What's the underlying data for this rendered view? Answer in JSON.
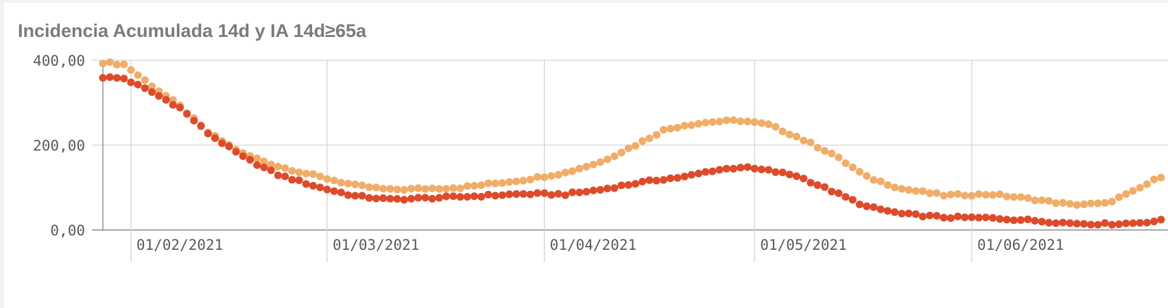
{
  "title": "Incidencia Acumulada 14d y IA 14d≥65a",
  "chart_data": {
    "type": "scatter",
    "title": "Incidencia Acumulada 14d y IA 14d≥65a",
    "xlabel": "",
    "ylabel": "",
    "x_start": "2021-01-28",
    "x_end": "2021-06-29",
    "ylim": [
      0,
      420
    ],
    "yticks": [
      "0,00",
      "200,00",
      "400,00"
    ],
    "xticks": [
      {
        "date": "2021-02-01",
        "label": "01/02/2021"
      },
      {
        "date": "2021-03-01",
        "label": "01/03/2021"
      },
      {
        "date": "2021-04-01",
        "label": "01/04/2021"
      },
      {
        "date": "2021-05-01",
        "label": "01/05/2021"
      },
      {
        "date": "2021-06-01",
        "label": "01/06/2021"
      }
    ],
    "grid": true,
    "legend": "none",
    "series": [
      {
        "color": "#f0ad6a",
        "anchors": [
          {
            "date": "2021-01-28",
            "value": 395
          },
          {
            "date": "2021-01-31",
            "value": 390
          },
          {
            "date": "2021-02-04",
            "value": 340
          },
          {
            "date": "2021-02-08",
            "value": 292
          },
          {
            "date": "2021-02-12",
            "value": 230
          },
          {
            "date": "2021-02-17",
            "value": 180
          },
          {
            "date": "2021-02-22",
            "value": 150
          },
          {
            "date": "2021-02-28",
            "value": 125
          },
          {
            "date": "2021-03-05",
            "value": 105
          },
          {
            "date": "2021-03-10",
            "value": 95
          },
          {
            "date": "2021-03-20",
            "value": 100
          },
          {
            "date": "2021-03-29",
            "value": 118
          },
          {
            "date": "2021-04-04",
            "value": 135
          },
          {
            "date": "2021-04-09",
            "value": 160
          },
          {
            "date": "2021-04-14",
            "value": 200
          },
          {
            "date": "2021-04-18",
            "value": 235
          },
          {
            "date": "2021-04-21",
            "value": 247
          },
          {
            "date": "2021-04-25",
            "value": 255
          },
          {
            "date": "2021-04-29",
            "value": 258
          },
          {
            "date": "2021-05-03",
            "value": 248
          },
          {
            "date": "2021-05-07",
            "value": 220
          },
          {
            "date": "2021-05-12",
            "value": 180
          },
          {
            "date": "2021-05-17",
            "value": 125
          },
          {
            "date": "2021-05-22",
            "value": 97
          },
          {
            "date": "2021-05-28",
            "value": 82
          },
          {
            "date": "2021-06-04",
            "value": 84
          },
          {
            "date": "2021-06-10",
            "value": 72
          },
          {
            "date": "2021-06-15",
            "value": 60
          },
          {
            "date": "2021-06-20",
            "value": 62
          },
          {
            "date": "2021-06-24",
            "value": 90
          },
          {
            "date": "2021-06-29",
            "value": 135
          }
        ]
      },
      {
        "color": "#dd4b2c",
        "anchors": [
          {
            "date": "2021-01-28",
            "value": 360
          },
          {
            "date": "2021-01-31",
            "value": 357
          },
          {
            "date": "2021-02-04",
            "value": 325
          },
          {
            "date": "2021-02-08",
            "value": 288
          },
          {
            "date": "2021-02-12",
            "value": 228
          },
          {
            "date": "2021-02-17",
            "value": 172
          },
          {
            "date": "2021-02-22",
            "value": 130
          },
          {
            "date": "2021-02-28",
            "value": 100
          },
          {
            "date": "2021-03-05",
            "value": 80
          },
          {
            "date": "2021-03-10",
            "value": 72
          },
          {
            "date": "2021-03-20",
            "value": 78
          },
          {
            "date": "2021-03-29",
            "value": 85
          },
          {
            "date": "2021-04-04",
            "value": 84
          },
          {
            "date": "2021-04-09",
            "value": 95
          },
          {
            "date": "2021-04-14",
            "value": 110
          },
          {
            "date": "2021-04-18",
            "value": 120
          },
          {
            "date": "2021-04-21",
            "value": 125
          },
          {
            "date": "2021-04-25",
            "value": 140
          },
          {
            "date": "2021-04-29",
            "value": 148
          },
          {
            "date": "2021-05-03",
            "value": 140
          },
          {
            "date": "2021-05-07",
            "value": 128
          },
          {
            "date": "2021-05-12",
            "value": 92
          },
          {
            "date": "2021-05-17",
            "value": 55
          },
          {
            "date": "2021-05-22",
            "value": 38
          },
          {
            "date": "2021-05-28",
            "value": 30
          },
          {
            "date": "2021-06-04",
            "value": 28
          },
          {
            "date": "2021-06-10",
            "value": 22
          },
          {
            "date": "2021-06-15",
            "value": 16
          },
          {
            "date": "2021-06-20",
            "value": 14
          },
          {
            "date": "2021-06-24",
            "value": 16
          },
          {
            "date": "2021-06-29",
            "value": 24
          }
        ]
      }
    ]
  }
}
